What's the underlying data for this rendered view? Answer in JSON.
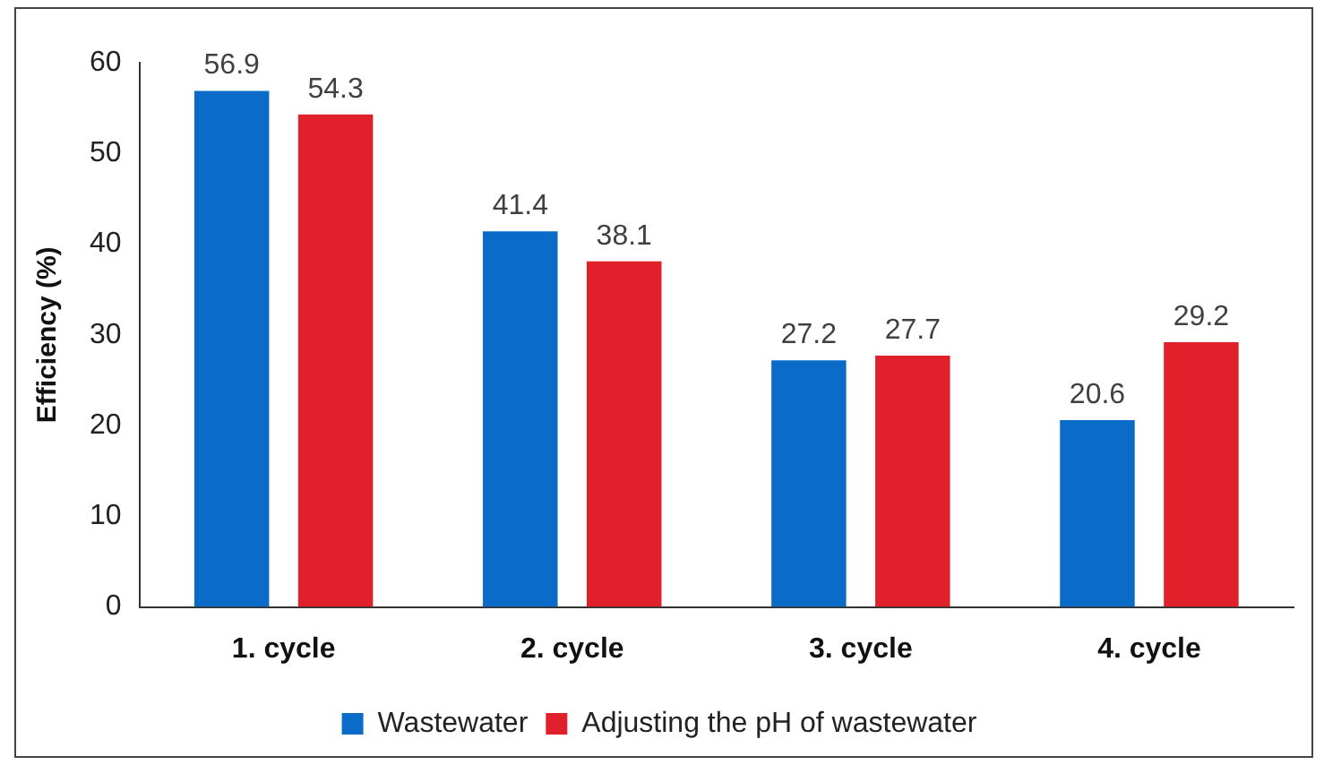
{
  "chart_data": {
    "type": "bar",
    "ylabel": "Efficiency (%)",
    "categories": [
      "1. cycle",
      "2. cycle",
      "3. cycle",
      "4. cycle"
    ],
    "series": [
      {
        "name": "Wastewater",
        "color": "#0a6cc8",
        "values": [
          56.9,
          41.4,
          27.2,
          20.6
        ]
      },
      {
        "name": "Adjusting the pH of wastewater",
        "color": "#e0202a",
        "values": [
          54.3,
          38.1,
          27.7,
          29.2
        ]
      }
    ],
    "ylim": [
      0,
      60
    ],
    "yticks": [
      0,
      10,
      20,
      30,
      40,
      50,
      60
    ],
    "grid": false,
    "legend": "bottom",
    "data_labels": true
  }
}
